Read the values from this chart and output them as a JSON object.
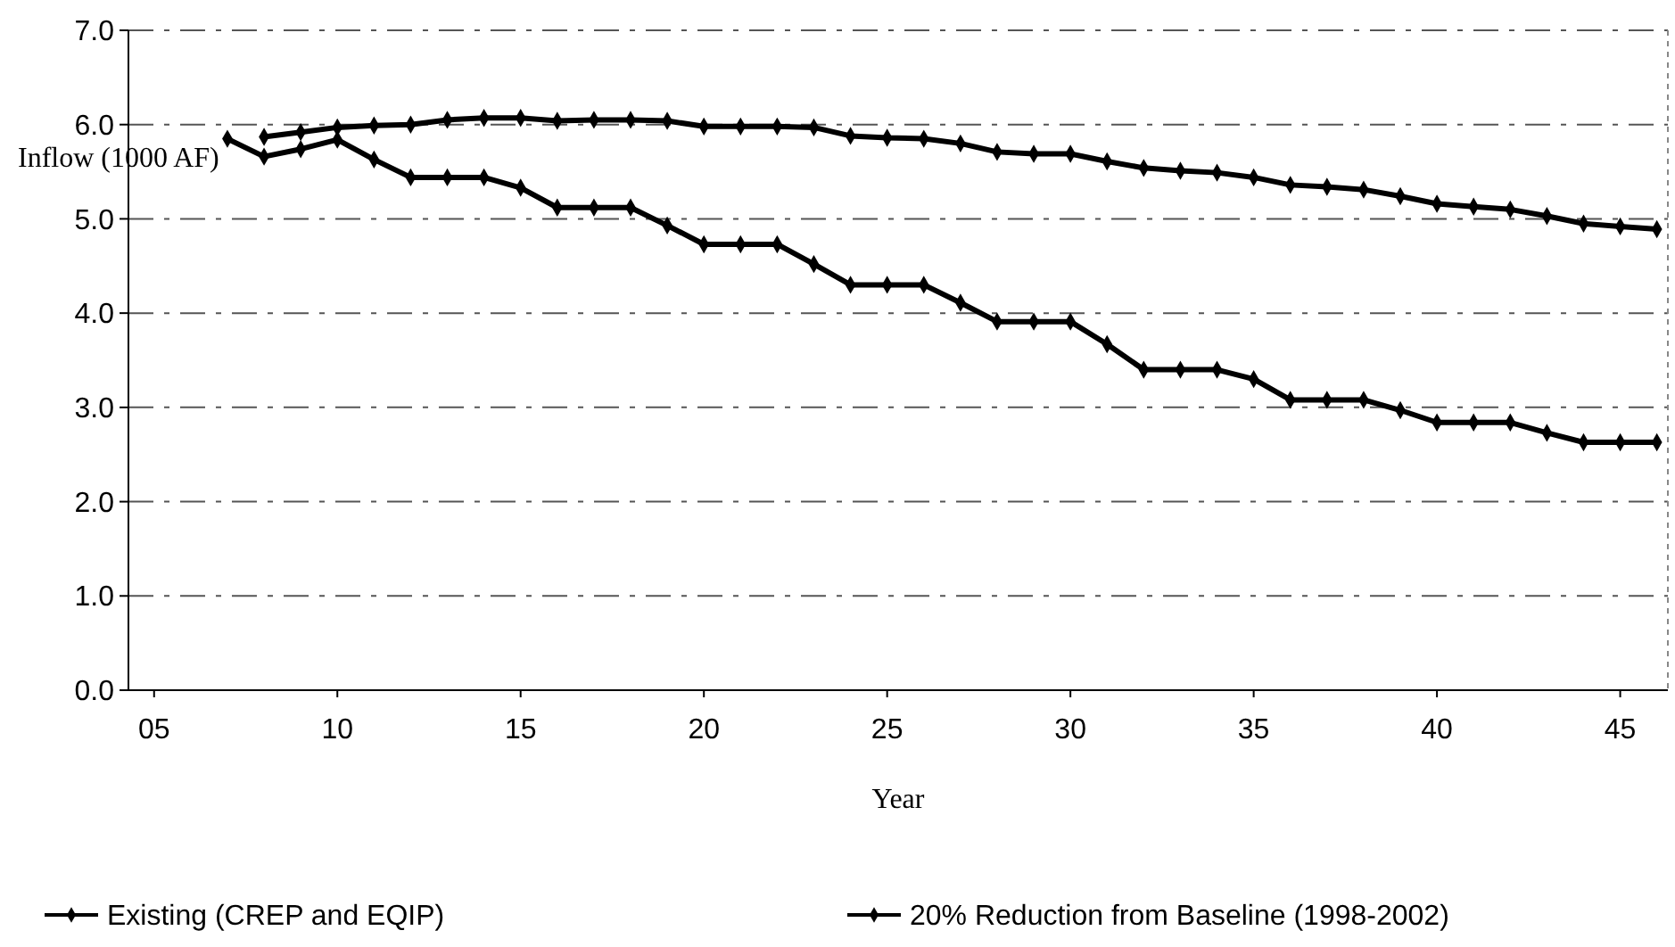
{
  "chart_data": {
    "type": "line",
    "xlabel": "Year",
    "ylabel": "Inflow (1000 AF)",
    "xlim": [
      4.3,
      46.3
    ],
    "xticks": [
      {
        "value": 5,
        "label": "05"
      },
      10,
      15,
      20,
      25,
      30,
      35,
      40,
      45
    ],
    "ylim": [
      0,
      7
    ],
    "yticks": [
      {
        "value": 0,
        "label": "0.0"
      },
      {
        "value": 1,
        "label": "1.0"
      },
      {
        "value": 2,
        "label": "2.0"
      },
      {
        "value": 3,
        "label": "3.0"
      },
      {
        "value": 4,
        "label": "4.0"
      },
      {
        "value": 5,
        "label": "5.0"
      },
      {
        "value": 6,
        "label": "6.0"
      },
      {
        "value": 7,
        "label": "7.0"
      }
    ],
    "grid": "y",
    "legend": "bottom",
    "marker": "diamond",
    "line_style": "solid",
    "series": [
      {
        "name": "Existing (CREP and EQIP)",
        "color": "#000000",
        "x": [
          7,
          8,
          9,
          10,
          11,
          12,
          13,
          14,
          15,
          16,
          17,
          18,
          19,
          20,
          21,
          22,
          23,
          24,
          25,
          26,
          27,
          28,
          29,
          30,
          31,
          32,
          33,
          34,
          35,
          36,
          37,
          38,
          39,
          40,
          41,
          42,
          43,
          44,
          45,
          46
        ],
        "values": [
          5.85,
          5.66,
          5.74,
          5.84,
          5.63,
          5.44,
          5.44,
          5.44,
          5.33,
          5.12,
          5.12,
          5.12,
          4.93,
          4.73,
          4.73,
          4.73,
          4.52,
          4.3,
          4.3,
          4.3,
          4.11,
          3.91,
          3.91,
          3.91,
          3.67,
          3.4,
          3.4,
          3.4,
          3.3,
          3.08,
          3.08,
          3.08,
          2.97,
          2.84,
          2.84,
          2.84,
          2.73,
          2.63,
          2.63,
          2.63
        ]
      },
      {
        "name": "20% Reduction from Baseline (1998-2002)",
        "color": "#000000",
        "x": [
          8,
          9,
          10,
          11,
          12,
          13,
          14,
          15,
          16,
          17,
          18,
          19,
          20,
          21,
          22,
          23,
          24,
          25,
          26,
          27,
          28,
          29,
          30,
          31,
          32,
          33,
          34,
          35,
          36,
          37,
          38,
          39,
          40,
          41,
          42,
          43,
          44,
          45,
          46
        ],
        "values": [
          5.87,
          5.92,
          5.97,
          5.99,
          6.0,
          6.05,
          6.07,
          6.07,
          6.04,
          6.05,
          6.05,
          6.04,
          5.98,
          5.98,
          5.98,
          5.97,
          5.88,
          5.86,
          5.85,
          5.8,
          5.71,
          5.69,
          5.69,
          5.61,
          5.54,
          5.51,
          5.49,
          5.44,
          5.36,
          5.34,
          5.31,
          5.24,
          5.16,
          5.13,
          5.1,
          5.03,
          4.95,
          4.92,
          4.89
        ]
      }
    ]
  }
}
